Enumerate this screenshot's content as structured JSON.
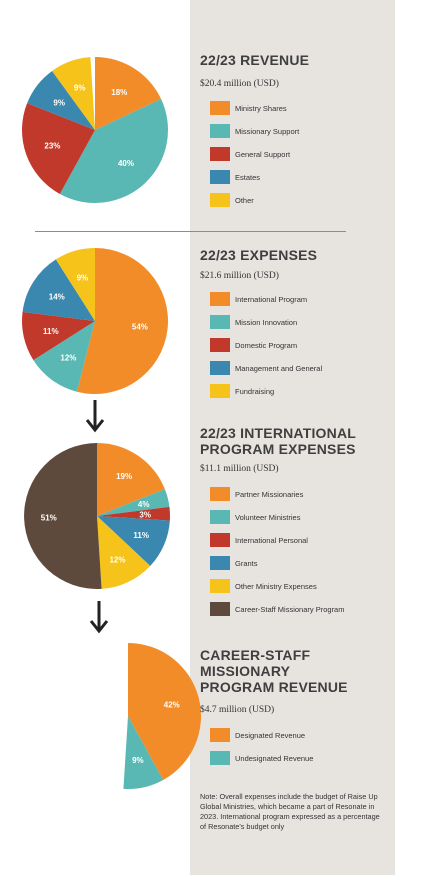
{
  "colors": {
    "panel": "#e7e4e0",
    "orange": "#f28c28",
    "teal": "#5ab8b4",
    "red": "#c0392b",
    "blue": "#3a88b0",
    "yellow": "#f5c31a",
    "brown": "#5e4a3c"
  },
  "sections": [
    {
      "title_lines": [
        "22/23 REVENUE"
      ],
      "subtitle": "$20.4 million (USD)"
    },
    {
      "title_lines": [
        "22/23 EXPENSES"
      ],
      "subtitle": "$21.6 million (USD)"
    },
    {
      "title_lines": [
        "22/23 INTERNATIONAL",
        "PROGRAM EXPENSES"
      ],
      "subtitle": "$11.1 million (USD)"
    },
    {
      "title_lines": [
        "CAREER-STAFF",
        "MISSIONARY",
        "PROGRAM REVENUE"
      ],
      "subtitle": "$4.7 million (USD)"
    }
  ],
  "chart_data": [
    {
      "type": "pie",
      "title": "22/23 REVENUE",
      "subtitle": "$20.4 million (USD)",
      "categories": [
        "Ministry Shares",
        "Missionary Support",
        "General Support",
        "Estates",
        "Other"
      ],
      "values": [
        18,
        40,
        23,
        9,
        9
      ],
      "labels": [
        "18%",
        "40%",
        "23%",
        "9%",
        "9%"
      ],
      "colors": [
        "#f28c28",
        "#5ab8b4",
        "#c0392b",
        "#3a88b0",
        "#f5c31a"
      ]
    },
    {
      "type": "pie",
      "title": "22/23 EXPENSES",
      "subtitle": "$21.6 million (USD)",
      "categories": [
        "International Program",
        "Mission Innovation",
        "Domestic Program",
        "Management and General",
        "Fundraising"
      ],
      "values": [
        54,
        12,
        11,
        14,
        9
      ],
      "labels": [
        "54%",
        "12%",
        "11%",
        "14%",
        "9%"
      ],
      "colors": [
        "#f28c28",
        "#5ab8b4",
        "#c0392b",
        "#3a88b0",
        "#f5c31a"
      ]
    },
    {
      "type": "pie",
      "title": "22/23 INTERNATIONAL PROGRAM EXPENSES",
      "subtitle": "$11.1 million (USD)",
      "categories": [
        "Partner Missionaries",
        "Volunteer Ministries",
        "International Personal",
        "Grants",
        "Other Ministry Expenses",
        "Career-Staff Missionary Program"
      ],
      "values": [
        19,
        4,
        3,
        11,
        12,
        51
      ],
      "labels": [
        "19%",
        "4%",
        "3%",
        "11%",
        "12%",
        "51%"
      ],
      "colors": [
        "#f28c28",
        "#5ab8b4",
        "#c0392b",
        "#3a88b0",
        "#f5c31a",
        "#5e4a3c"
      ]
    },
    {
      "type": "pie",
      "title": "CAREER-STAFF MISSIONARY PROGRAM REVENUE",
      "subtitle": "$4.7 million (USD)",
      "categories": [
        "Designated Revenue",
        "Undesignated Revenue"
      ],
      "values": [
        42,
        9
      ],
      "labels": [
        "42%",
        "9%"
      ],
      "colors": [
        "#f28c28",
        "#5ab8b4"
      ]
    }
  ],
  "note": "Note: Overall expenses include the budget of Raise Up Global Ministries, which became a part of Resonate in 2023. International program expressed as a percentage of Resonate's budget only"
}
